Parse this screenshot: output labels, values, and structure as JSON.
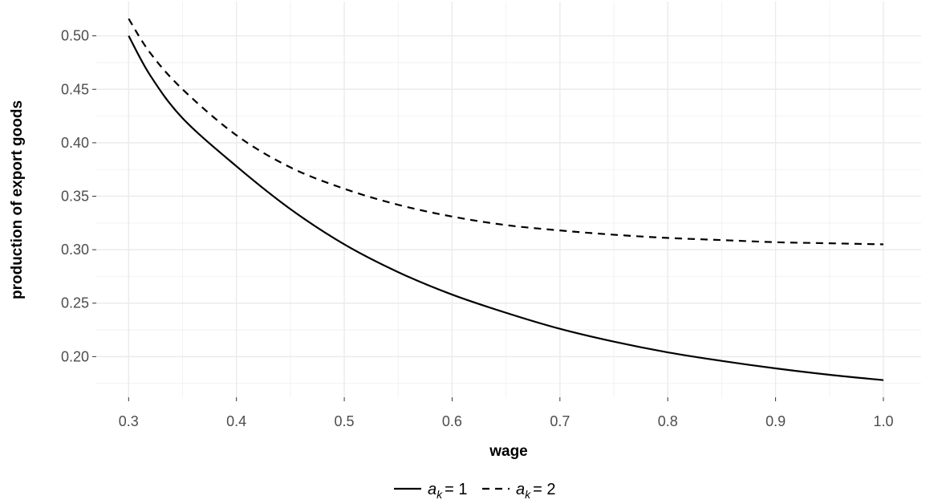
{
  "chart_data": {
    "type": "line",
    "title": "",
    "xlabel": "wage",
    "ylabel": "production of export goods",
    "xlim": [
      0.27,
      1.035
    ],
    "ylim": [
      0.162,
      0.532
    ],
    "x_ticks": [
      "0.3",
      "0.4",
      "0.5",
      "0.6",
      "0.7",
      "0.8",
      "0.9",
      "1.0"
    ],
    "y_ticks": [
      "0.20",
      "0.25",
      "0.30",
      "0.35",
      "0.40",
      "0.45",
      "0.50"
    ],
    "grid": true,
    "legend_position": "bottom",
    "series": [
      {
        "legend_var": "a",
        "legend_sub": "k",
        "legend_value": "= 1",
        "line_style": "solid",
        "color": "#000000",
        "x": [
          0.3,
          0.32,
          0.35,
          0.4,
          0.45,
          0.5,
          0.55,
          0.6,
          0.65,
          0.7,
          0.75,
          0.8,
          0.85,
          0.9,
          0.95,
          1.0
        ],
        "y": [
          0.5,
          0.463,
          0.423,
          0.378,
          0.338,
          0.305,
          0.279,
          0.258,
          0.241,
          0.226,
          0.214,
          0.204,
          0.196,
          0.189,
          0.183,
          0.178
        ]
      },
      {
        "legend_var": "a",
        "legend_sub": "k",
        "legend_value": "= 2",
        "line_style": "dashed",
        "color": "#000000",
        "x": [
          0.3,
          0.32,
          0.35,
          0.4,
          0.45,
          0.5,
          0.55,
          0.6,
          0.65,
          0.7,
          0.75,
          0.8,
          0.85,
          0.9,
          0.95,
          1.0
        ],
        "y": [
          0.516,
          0.484,
          0.45,
          0.407,
          0.377,
          0.357,
          0.342,
          0.331,
          0.323,
          0.318,
          0.314,
          0.311,
          0.309,
          0.307,
          0.306,
          0.305
        ]
      }
    ]
  }
}
